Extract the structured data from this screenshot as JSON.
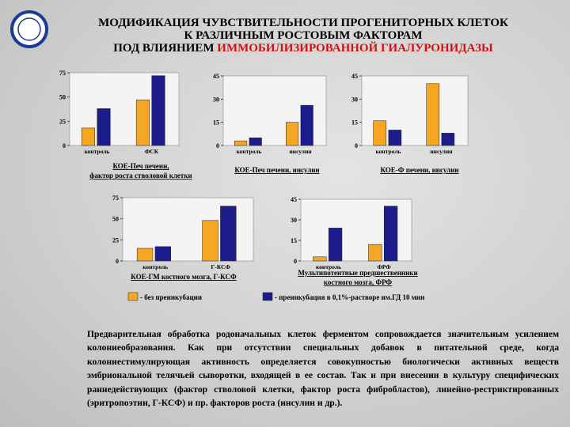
{
  "header": {
    "line1": "МОДИФИКАЦИЯ ЧУВСТВИТЕЛЬНОСТИ ПРОГЕНИТОРНЫХ КЛЕТОК",
    "line2": "К РАЗЛИЧНЫМ РОСТОВЫМ ФАКТОРАМ",
    "line3_black": "ПОД ВЛИЯНИЕМ",
    "line3_red": "ИММОБИЛИЗИРОВАННОЙ ГИАЛУРОНИДАЗЫ"
  },
  "chart_data": [
    {
      "type": "bar",
      "caption": [
        "КОЕ-Печ печени,",
        "фактор роста стволовой клетки"
      ],
      "categories": [
        "контроль",
        "ФСК"
      ],
      "ylim": [
        0,
        75
      ],
      "yticks": [
        0,
        25,
        50,
        75
      ],
      "series": [
        {
          "color": "#f5a623",
          "values": [
            18,
            47
          ]
        },
        {
          "color": "#1c1c8c",
          "values": [
            38,
            72
          ]
        }
      ]
    },
    {
      "type": "bar",
      "caption": [
        "КОЕ-Печ печени, инсулин"
      ],
      "categories": [
        "контроль",
        "инсулин"
      ],
      "ylim": [
        0,
        45
      ],
      "yticks": [
        0,
        15,
        30,
        45
      ],
      "series": [
        {
          "color": "#f5a623",
          "values": [
            3,
            15
          ]
        },
        {
          "color": "#1c1c8c",
          "values": [
            5,
            26
          ]
        }
      ]
    },
    {
      "type": "bar",
      "caption": [
        "КОЕ-Ф печени, инсулин"
      ],
      "categories": [
        "контроль",
        "инсулин"
      ],
      "ylim": [
        0,
        45
      ],
      "yticks": [
        0,
        15,
        30,
        45
      ],
      "series": [
        {
          "color": "#f5a623",
          "values": [
            16,
            40
          ]
        },
        {
          "color": "#1c1c8c",
          "values": [
            10,
            8
          ]
        }
      ]
    },
    {
      "type": "bar",
      "caption": [
        "КОЕ-ГМ костного мозга, Г-КСФ"
      ],
      "categories": [
        "контроль",
        "Г-КСФ"
      ],
      "ylim": [
        0,
        75
      ],
      "yticks": [
        0,
        25,
        50,
        75
      ],
      "series": [
        {
          "color": "#f5a623",
          "values": [
            15,
            48
          ]
        },
        {
          "color": "#1c1c8c",
          "values": [
            17,
            65
          ]
        }
      ]
    },
    {
      "type": "bar",
      "caption": [
        "Мультипотентные предшественники",
        "костного мозга, ФРФ"
      ],
      "categories": [
        "контроль",
        "ФРФ"
      ],
      "ylim": [
        0,
        45
      ],
      "yticks": [
        0,
        15,
        30,
        45
      ],
      "series": [
        {
          "color": "#f5a623",
          "values": [
            3,
            12
          ]
        },
        {
          "color": "#1c1c8c",
          "values": [
            24,
            40
          ]
        }
      ]
    }
  ],
  "legend": [
    {
      "label": "- без преинкубации",
      "color": "#f5a623"
    },
    {
      "label": "- преинкубация в 0,1%-растворе им.ГД 10 мин",
      "color": "#1c1c8c"
    }
  ],
  "paragraph": "Предварительная обработка родоначальных клеток ферментом сопровождается значительным усилением колониеобразования. Как при отсутствии специальных добавок в питательной среде, когда колониестимулирующая активность определяется совокупностью биологически активных веществ эмбриональной телячьей сыворотки, входящей в ее состав. Так и при внесении в культуру специфических раннедействующих (фактор стволовой клетки, фактор роста фибробластов), линейно-рестриктированных (эритропоэтин, Г-КСФ) и пр. факторов роста (инсулин и др.)."
}
